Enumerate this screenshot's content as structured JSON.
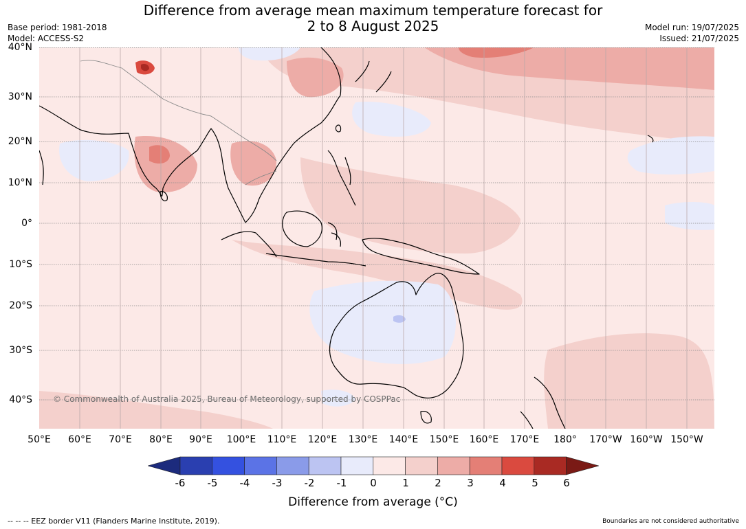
{
  "title": {
    "line1": "Difference from average mean maximum temperature forecast for",
    "line2": "2 to 8 August 2025"
  },
  "meta": {
    "base_period": "Base period: 1981-2018",
    "model": "Model: ACCESS-S2",
    "model_run": "Model run: 19/07/2025",
    "issued": "Issued: 21/07/2025"
  },
  "map": {
    "copyright": "© Commonwealth of Australia 2025, Bureau of Meteorology, supported by COSPPac",
    "lat_ticks": [
      "40°N",
      "30°N",
      "20°N",
      "10°N",
      "0°",
      "10°S",
      "20°S",
      "30°S",
      "40°S"
    ],
    "lon_ticks": [
      "50°E",
      "60°E",
      "70°E",
      "80°E",
      "90°E",
      "100°E",
      "110°E",
      "120°E",
      "130°E",
      "140°E",
      "150°E",
      "160°E",
      "170°E",
      "180°",
      "170°W",
      "160°W",
      "150°W"
    ],
    "lon_range_deg_east": [
      50,
      216.7
    ],
    "lat_range_deg": [
      -46.5,
      40
    ]
  },
  "colorbar": {
    "title": "Difference from average (°C)",
    "labels": [
      "-6",
      "-5",
      "-4",
      "-3",
      "-2",
      "-1",
      "0",
      "1",
      "2",
      "3",
      "4",
      "5",
      "6"
    ],
    "colors": [
      "#1c2b7d",
      "#2a3fb0",
      "#3451e0",
      "#5b73e6",
      "#8a9be9",
      "#bcc4f2",
      "#e8ebfb",
      "#fce9e7",
      "#f4d0cc",
      "#edaca7",
      "#e47f76",
      "#da4a3f",
      "#a92a23",
      "#7a1a15"
    ]
  },
  "footer": {
    "left": "--  --  -- EEZ border V11 (Flanders Marine Institute, 2019).",
    "right": "Boundaries are not considered authoritative"
  }
}
